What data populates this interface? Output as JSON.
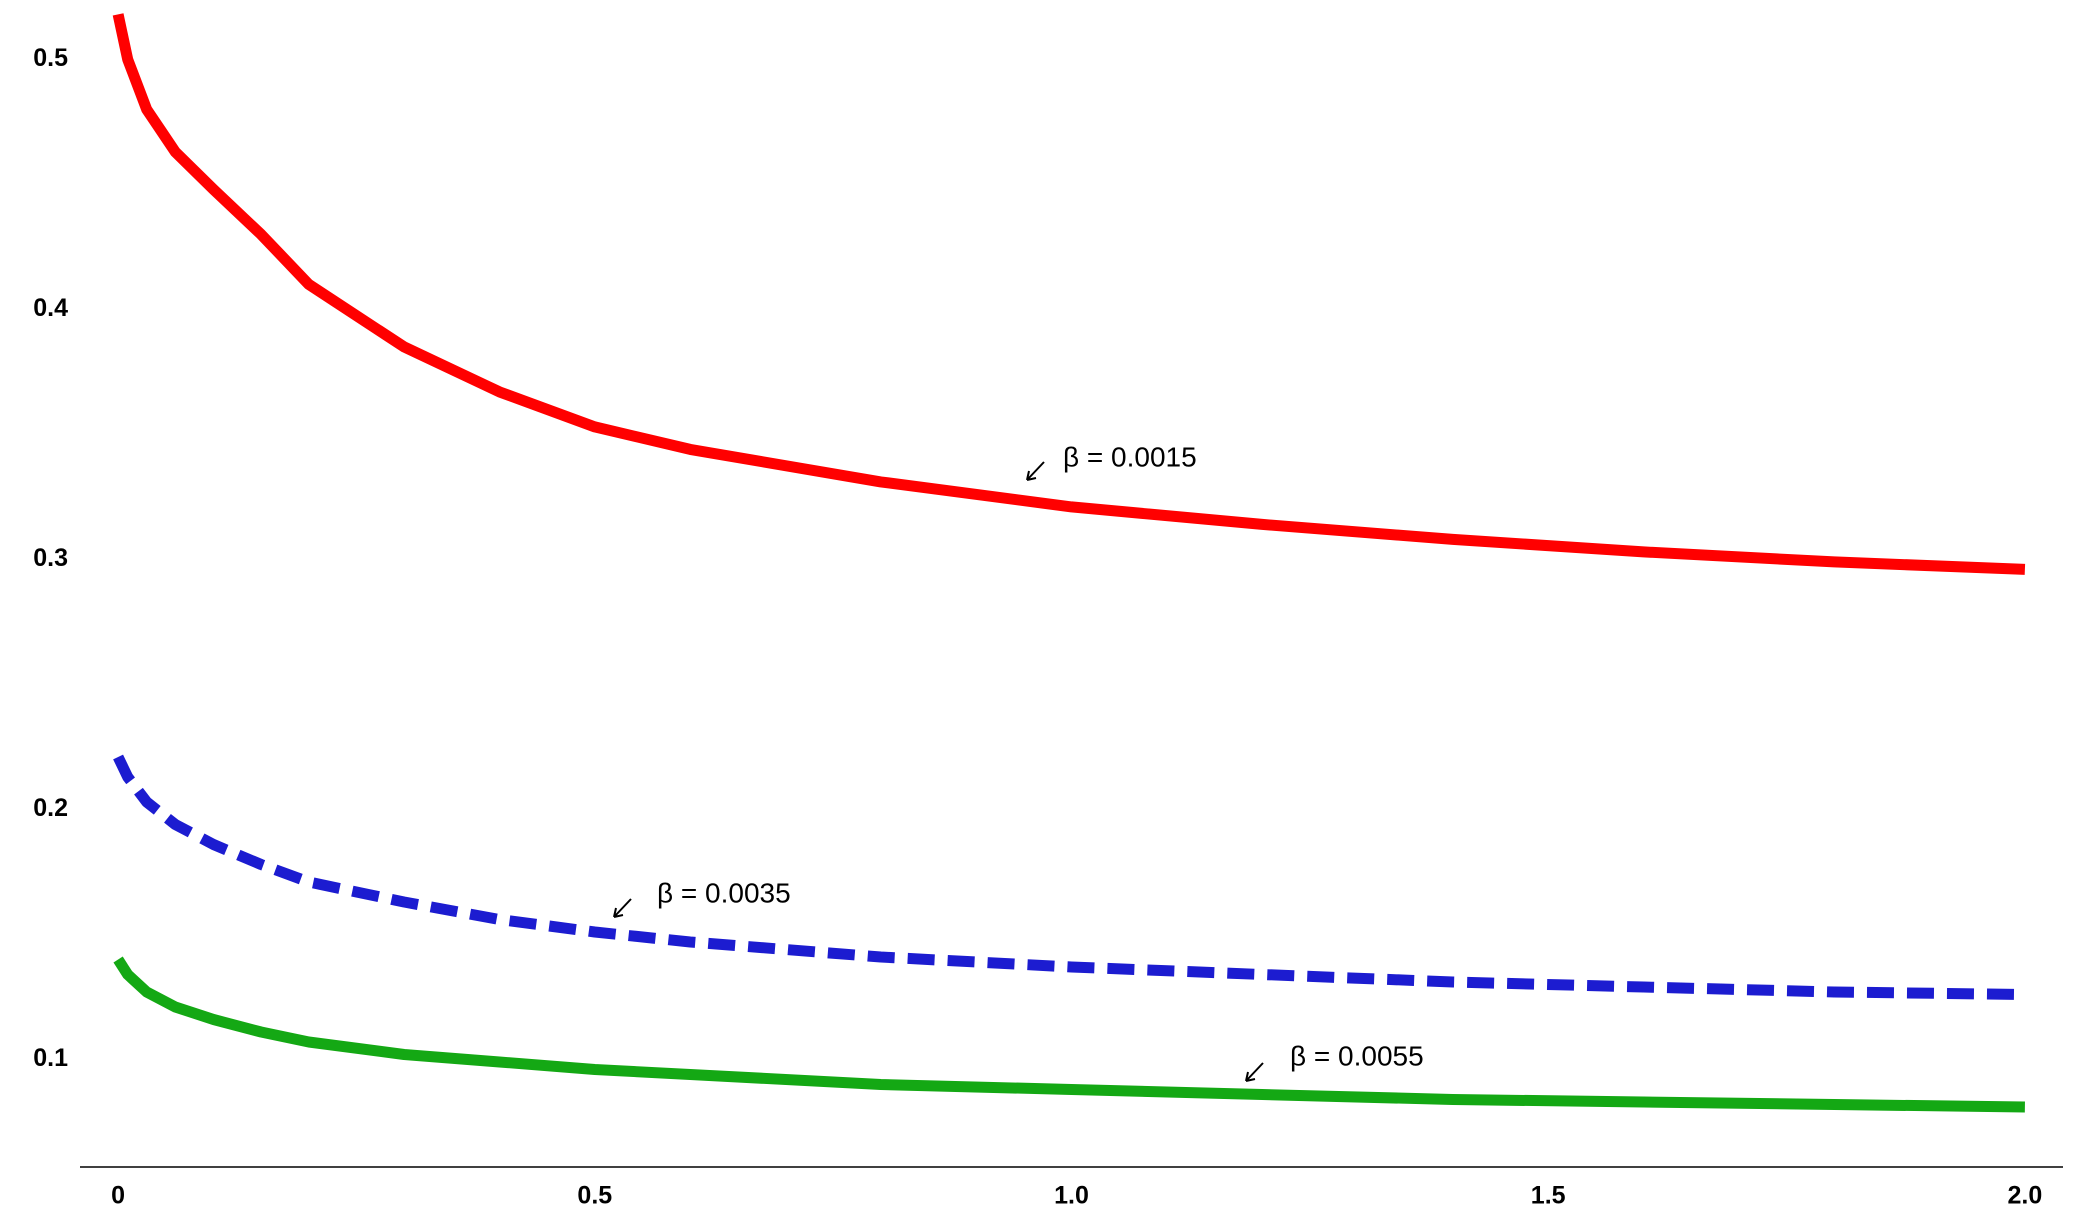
{
  "chart_data": {
    "type": "line",
    "x": [
      0,
      0.01,
      0.03,
      0.06,
      0.1,
      0.15,
      0.2,
      0.3,
      0.4,
      0.5,
      0.6,
      0.8,
      1.0,
      1.2,
      1.4,
      1.6,
      1.8,
      2.0
    ],
    "series": [
      {
        "color": "#ff0000",
        "dash": false,
        "values": [
          0.518,
          0.5,
          0.48,
          0.463,
          0.448,
          0.43,
          0.41,
          0.385,
          0.367,
          0.353,
          0.344,
          0.331,
          0.321,
          0.314,
          0.308,
          0.303,
          0.299,
          0.296
        ]
      },
      {
        "color": "#1c1cd0",
        "dash": true,
        "values": [
          0.221,
          0.213,
          0.203,
          0.194,
          0.186,
          0.178,
          0.171,
          0.163,
          0.156,
          0.151,
          0.147,
          0.141,
          0.137,
          0.134,
          0.131,
          0.129,
          0.127,
          0.126
        ]
      },
      {
        "color": "#14a814",
        "dash": false,
        "values": [
          0.14,
          0.134,
          0.127,
          0.121,
          0.116,
          0.111,
          0.107,
          0.102,
          0.099,
          0.096,
          0.094,
          0.09,
          0.088,
          0.086,
          0.084,
          0.083,
          0.082,
          0.081
        ]
      }
    ],
    "annotations": [
      "β = 0.0015",
      "β = 0.0035",
      "β = 0.0055"
    ],
    "xlim": [
      -0.04,
      2.04
    ],
    "ylim": [
      0.057,
      0.52
    ],
    "xticks": [
      0,
      0.5,
      {
        "value": 1.0,
        "label": "1.0"
      },
      1.5,
      {
        "value": 2.0,
        "label": "2.0"
      }
    ],
    "yticks": [
      0.1,
      0.2,
      0.3,
      0.4,
      0.5
    ]
  }
}
